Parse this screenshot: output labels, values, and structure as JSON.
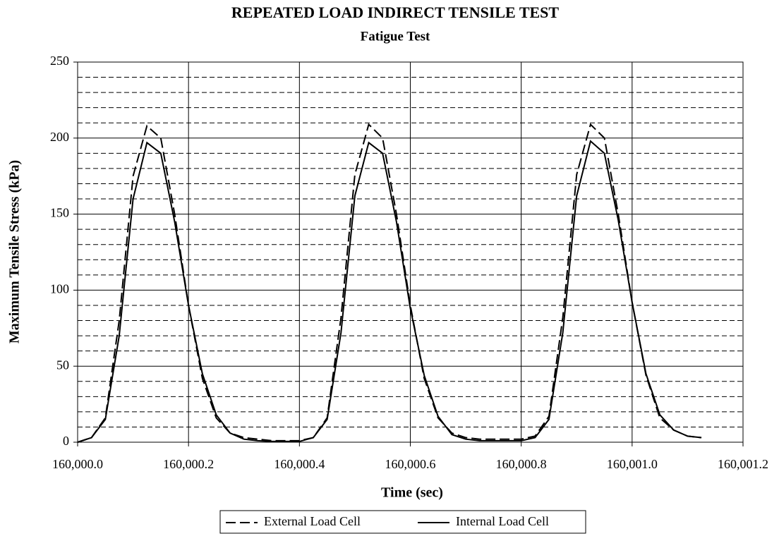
{
  "chart_data": {
    "type": "line",
    "title": "REPEATED LOAD INDIRECT TENSILE TEST",
    "subtitle": "Fatigue Test",
    "x_label": "Time (sec)",
    "y_label": "Maximum Tensile Stress (kPa)",
    "x": [
      160000,
      160000.025,
      160000.05,
      160000.075,
      160000.1,
      160000.125,
      160000.15,
      160000.175,
      160000.2,
      160000.225,
      160000.25,
      160000.275,
      160000.3,
      160000.325,
      160000.35,
      160000.375,
      160000.4,
      160000.425,
      160000.45,
      160000.475,
      160000.5,
      160000.525,
      160000.55,
      160000.575,
      160000.6,
      160000.625,
      160000.65,
      160000.675,
      160000.7,
      160000.725,
      160000.75,
      160000.775,
      160000.8,
      160000.825,
      160000.85,
      160000.875,
      160000.9,
      160000.925,
      160000.95,
      160000.975,
      160001,
      160001.025,
      160001.05,
      160001.075,
      160001.1,
      160001.125
    ],
    "series": [
      {
        "name": "External Load Cell",
        "color": "#000000",
        "line_style": "dashed",
        "values": [
          0,
          3,
          16,
          80,
          175,
          208,
          200,
          150,
          90,
          42,
          16,
          6,
          3,
          2,
          1,
          1,
          1,
          3,
          16,
          82,
          176,
          209,
          200,
          150,
          90,
          42,
          16,
          6,
          3,
          2,
          2,
          2,
          2,
          4,
          17,
          82,
          176,
          209,
          200,
          150,
          92,
          44,
          16,
          8,
          4,
          3
        ]
      },
      {
        "name": "Internal Load Cell",
        "color": "#000000",
        "line_style": "solid",
        "values": [
          0,
          3,
          15,
          70,
          160,
          197,
          190,
          145,
          90,
          45,
          18,
          6,
          2,
          1,
          0.5,
          0.5,
          0.5,
          3,
          15,
          72,
          162,
          197,
          190,
          145,
          88,
          44,
          17,
          5,
          2,
          1,
          1,
          1,
          1,
          3,
          15,
          72,
          162,
          198,
          190,
          146,
          92,
          45,
          18,
          8,
          4,
          3
        ]
      }
    ],
    "xlim": [
      160000,
      160001.2
    ],
    "xticks": [
      {
        "value": 160000,
        "label": "160,000.0"
      },
      {
        "value": 160000.2,
        "label": "160,000.2"
      },
      {
        "value": 160000.4,
        "label": "160,000.4"
      },
      {
        "value": 160000.6,
        "label": "160,000.6"
      },
      {
        "value": 160000.8,
        "label": "160,000.8"
      },
      {
        "value": 160001,
        "label": "160,001.0"
      },
      {
        "value": 160001.2,
        "label": "160,001.2"
      }
    ],
    "ylim": [
      0,
      250
    ],
    "yticks": [
      0,
      50,
      100,
      150,
      200,
      250
    ],
    "y_minor_ticks": [
      10,
      20,
      30,
      40,
      60,
      70,
      80,
      90,
      110,
      120,
      130,
      140,
      160,
      170,
      180,
      190,
      210,
      220,
      230,
      240
    ],
    "grid": true,
    "legend": "bottom"
  }
}
